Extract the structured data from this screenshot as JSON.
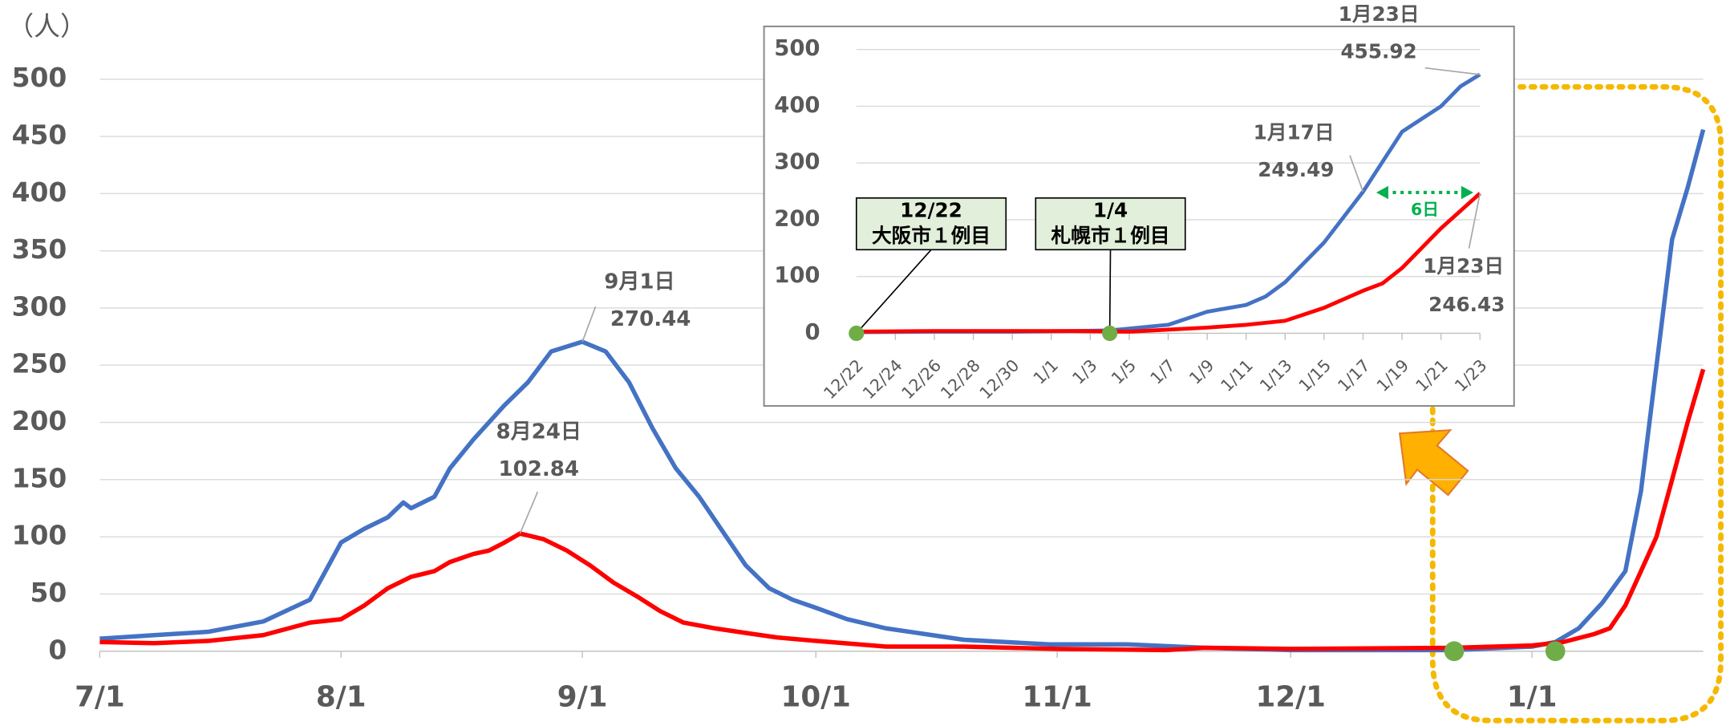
{
  "chart_data": [
    {
      "type": "line",
      "y_label": "（人）",
      "xlim": [
        "7/1",
        "1/23"
      ],
      "xticks": [
        "7/1",
        "8/1",
        "9/1",
        "10/1",
        "11/1",
        "12/1",
        "1/1"
      ],
      "ylim": [
        0,
        500
      ],
      "yticks": [
        0,
        50,
        100,
        150,
        200,
        250,
        300,
        350,
        400,
        450,
        500
      ],
      "grid": true,
      "markers": [
        "12/22",
        "1/4"
      ],
      "marker_color": "#70ad47",
      "series": [
        {
          "color": "#4472c4",
          "x": [
            "7/1",
            "7/8",
            "7/15",
            "7/22",
            "7/28",
            "7/30",
            "8/1",
            "8/4",
            "8/7",
            "8/9",
            "8/10",
            "8/13",
            "8/15",
            "8/18",
            "8/22",
            "8/25",
            "8/28",
            "9/1",
            "9/4",
            "9/7",
            "9/10",
            "9/13",
            "9/16",
            "9/19",
            "9/22",
            "9/25",
            "9/28",
            "10/1",
            "10/5",
            "10/10",
            "10/15",
            "10/20",
            "10/31",
            "11/10",
            "11/20",
            "12/1",
            "12/22",
            "1/1",
            "1/4",
            "1/7",
            "1/10",
            "1/13",
            "1/15",
            "1/17",
            "1/19",
            "1/21",
            "1/23"
          ],
          "values": [
            11,
            14,
            17,
            26,
            45,
            70,
            95,
            107,
            117,
            130,
            125,
            135,
            160,
            185,
            215,
            235,
            262,
            270.44,
            262,
            235,
            195,
            160,
            135,
            105,
            75,
            55,
            45,
            38,
            28,
            20,
            15,
            10,
            6,
            6,
            3,
            1,
            1,
            4,
            8,
            20,
            42,
            70,
            140,
            249.49,
            360,
            405,
            455.92
          ],
          "callouts": [
            {
              "x": "9/1",
              "text": "9月1日"
            }
          ]
        },
        {
          "color": "#ff0000",
          "x": [
            "7/1",
            "7/8",
            "7/15",
            "7/22",
            "7/28",
            "8/1",
            "8/4",
            "8/7",
            "8/10",
            "8/13",
            "8/15",
            "8/18",
            "8/20",
            "8/22",
            "8/24",
            "8/27",
            "8/30",
            "9/2",
            "9/5",
            "9/8",
            "9/11",
            "9/14",
            "9/18",
            "9/22",
            "9/26",
            "10/1",
            "10/10",
            "10/20",
            "11/1",
            "11/15",
            "11/20",
            "12/1",
            "12/22",
            "1/1",
            "1/5",
            "1/9",
            "1/11",
            "1/13",
            "1/15",
            "1/17",
            "1/19",
            "1/21",
            "1/23"
          ],
          "values": [
            8,
            7,
            9,
            14,
            25,
            28,
            40,
            55,
            65,
            70,
            78,
            85,
            88,
            95,
            102.84,
            98,
            88,
            75,
            60,
            48,
            35,
            25,
            20,
            16,
            12,
            9,
            4,
            4,
            2,
            1,
            3,
            2,
            3,
            5,
            8,
            15,
            20,
            40,
            70,
            100,
            150,
            200,
            246.43
          ],
          "callouts": [
            {
              "x": "8/24",
              "text": "8月24日"
            }
          ]
        }
      ]
    },
    {
      "type": "line",
      "xlim": [
        "12/22",
        "1/23"
      ],
      "xticks": [
        "12/22",
        "12/24",
        "12/26",
        "12/28",
        "12/30",
        "1/1",
        "1/3",
        "1/5",
        "1/7",
        "1/9",
        "1/11",
        "1/13",
        "1/15",
        "1/17",
        "1/19",
        "1/21",
        "1/23"
      ],
      "ylim": [
        0,
        500
      ],
      "yticks": [
        0,
        100,
        200,
        300,
        400,
        500
      ],
      "grid": true,
      "events": [
        {
          "date": "12/22",
          "text": "大阪市１例目"
        },
        {
          "date": "1/4",
          "text": "札幌市１例目"
        }
      ],
      "marker_color": "#70ad47",
      "gap": {
        "text": "6日",
        "from": "1/17",
        "to": "1/23",
        "color": "#00b050"
      },
      "series": [
        {
          "color": "#4472c4",
          "x": [
            "12/22",
            "12/26",
            "12/30",
            "1/2",
            "1/4",
            "1/7",
            "1/9",
            "1/11",
            "1/12",
            "1/13",
            "1/15",
            "1/17",
            "1/19",
            "1/21",
            "1/22",
            "1/23"
          ],
          "values": [
            2,
            3,
            3,
            4,
            5,
            15,
            38,
            50,
            65,
            90,
            160,
            249.49,
            355,
            400,
            435,
            455.92
          ],
          "callouts": [
            {
              "x": "1/17",
              "text": "1月17日"
            },
            {
              "x": "1/23",
              "text": "1月23日"
            }
          ]
        },
        {
          "color": "#ff0000",
          "x": [
            "12/22",
            "12/26",
            "12/30",
            "1/2",
            "1/5",
            "1/9",
            "1/11",
            "1/13",
            "1/15",
            "1/17",
            "1/18",
            "1/19",
            "1/21",
            "1/23"
          ],
          "values": [
            3,
            4,
            4,
            4,
            3,
            10,
            15,
            22,
            45,
            75,
            88,
            115,
            185,
            246.43
          ],
          "callouts": [
            {
              "x": "1/23",
              "text": "1月23日"
            }
          ]
        }
      ]
    }
  ]
}
